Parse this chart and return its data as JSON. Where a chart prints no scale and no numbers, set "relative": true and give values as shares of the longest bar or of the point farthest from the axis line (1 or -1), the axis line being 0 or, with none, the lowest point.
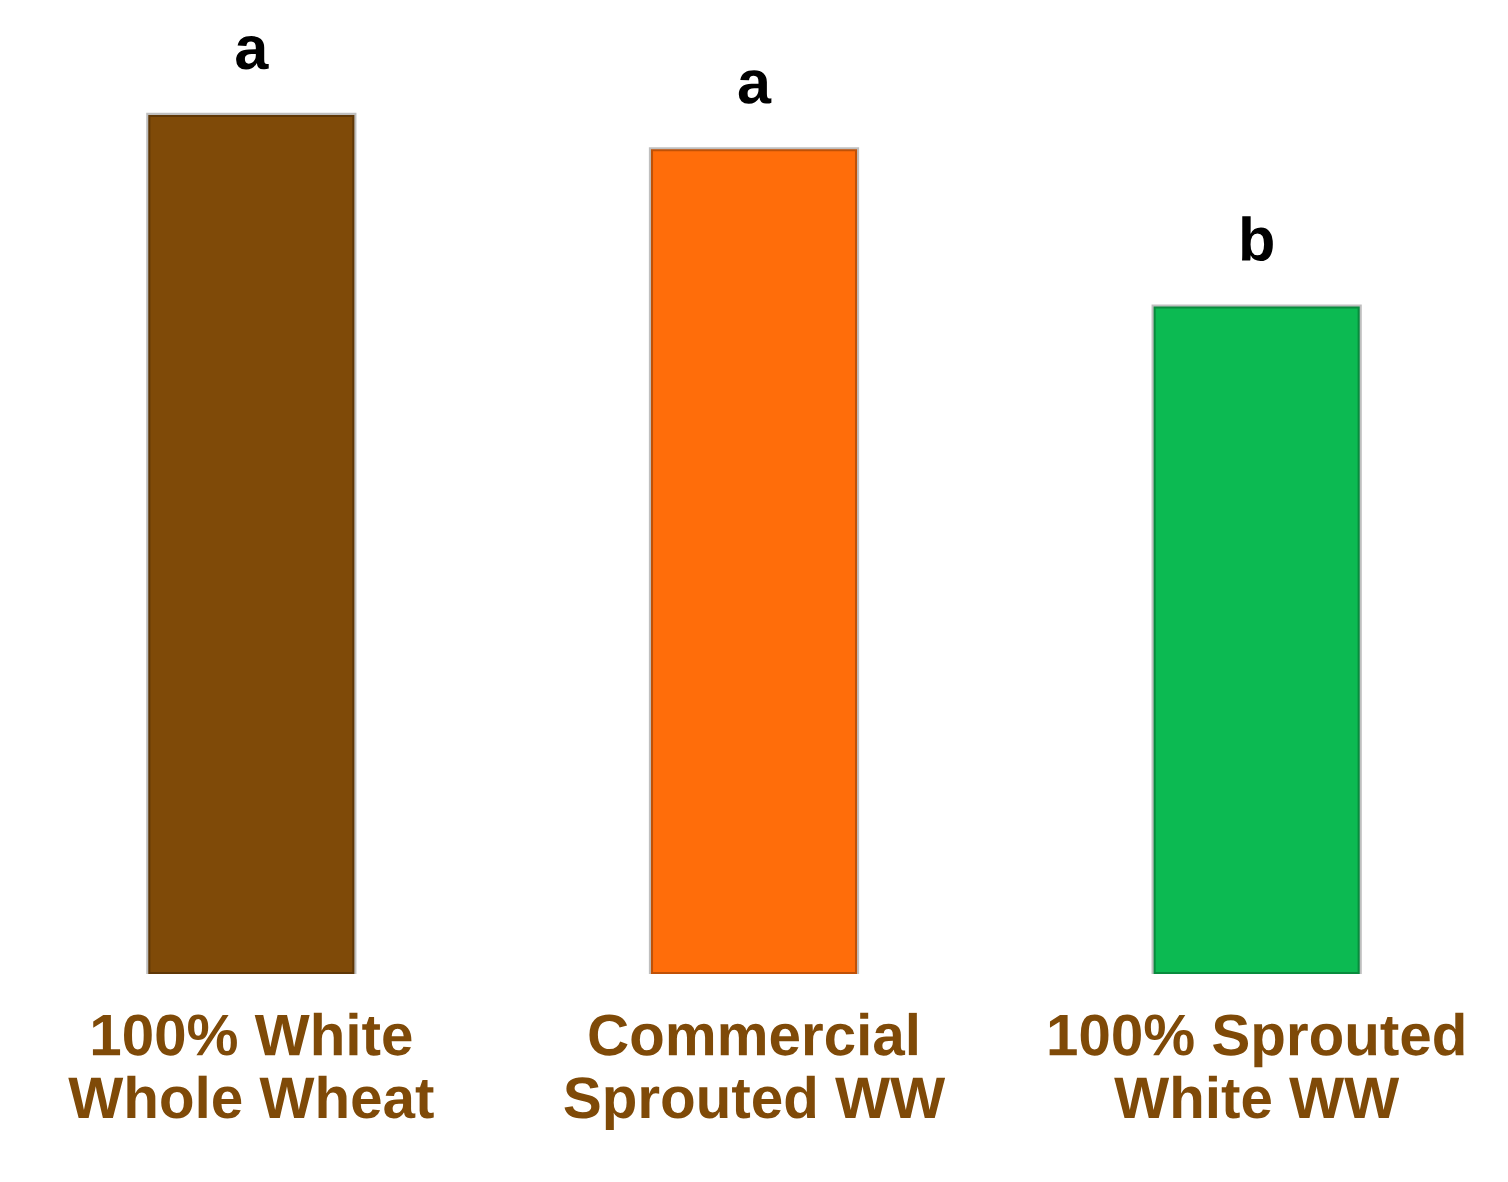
{
  "chart_data": {
    "type": "bar",
    "relative": true,
    "categories": [
      "100% White\nWhole Wheat",
      "Commercial\nSprouted WW",
      "100% Sprouted\nWhite WW"
    ],
    "values": [
      1,
      0.96,
      0.777
    ],
    "colors": [
      "#7f4a08",
      "#ff6d0a",
      "#0cba52"
    ],
    "annotations": [
      {
        "text": "a",
        "x": "100% White\nWhole Wheat",
        "y": 1
      },
      {
        "text": "a",
        "x": "Commercial\nSprouted WW",
        "y": 0.96
      },
      {
        "text": "b",
        "x": "100% Sprouted\nWhite WW",
        "y": 0.777
      }
    ],
    "grid": false,
    "legend": false
  }
}
